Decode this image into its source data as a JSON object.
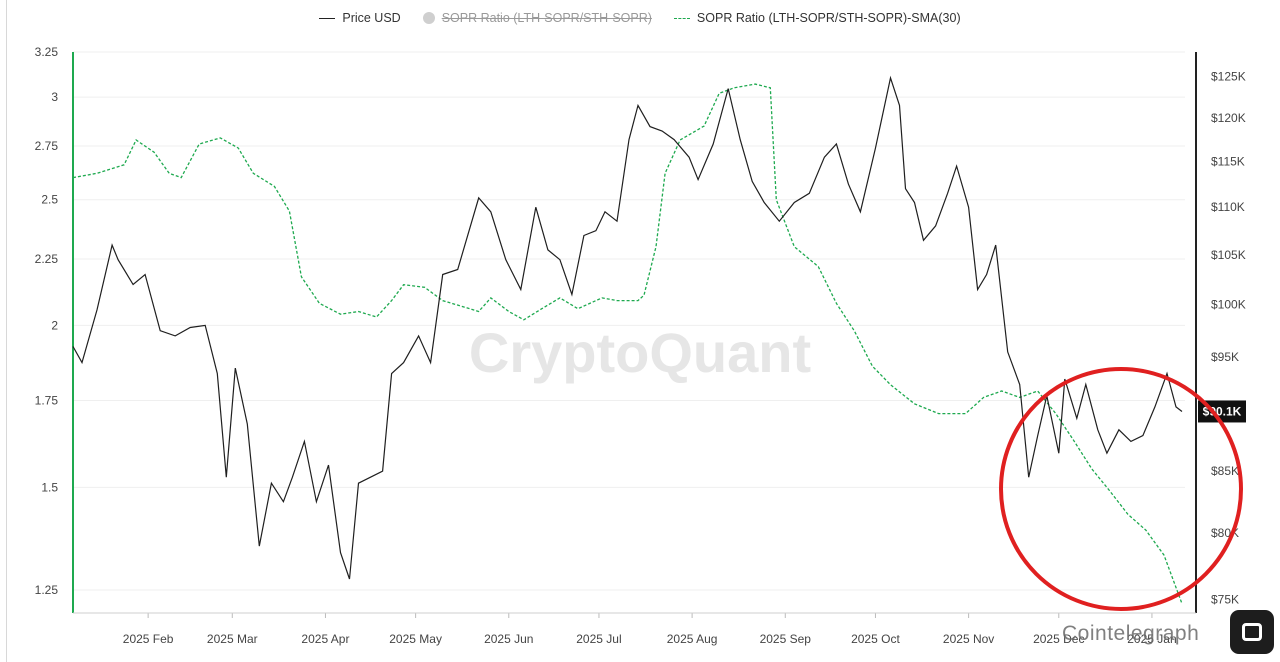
{
  "legend": {
    "items": [
      {
        "label": "Price USD",
        "active": true
      },
      {
        "label": "SOPR Ratio (LTH-SOPR/STH-SOPR)",
        "active": false
      },
      {
        "label": "SOPR Ratio (LTH-SOPR/STH-SOPR)-SMA(30)",
        "active": true
      }
    ]
  },
  "watermark": "CryptoQuant",
  "credit": "Cointelegraph",
  "colors": {
    "price": "#1f1f1f",
    "sopr_sma": "#1ea94f",
    "annotation_circle": "#e02020",
    "left_axis_line": "#1ea94f",
    "price_tag_bg": "#111111"
  },
  "chart_data": {
    "type": "line",
    "x_tick_labels": [
      "2025 Feb",
      "2025 Mar",
      "2025 Apr",
      "2025 May",
      "2025 Jun",
      "2025 Jul",
      "2025 Aug",
      "2025 Sep",
      "2025 Oct",
      "2025 Nov",
      "2025 Dec",
      "2025 Jan"
    ],
    "x_range": [
      "2025-01-07",
      "2026-01-12"
    ],
    "left_axis": {
      "ticks": [
        1.25,
        1.5,
        1.75,
        2,
        2.25,
        2.5,
        2.75,
        3,
        3.25
      ],
      "tick_labels": [
        "1.25",
        "1.5",
        "1.75",
        "2",
        "2.25",
        "2.5",
        "2.75",
        "3",
        "3.25"
      ],
      "range": [
        1.2,
        3.25
      ],
      "scale": "log"
    },
    "right_axis": {
      "ticks": [
        75000,
        80000,
        85000,
        90000,
        95000,
        100000,
        105000,
        110000,
        115000,
        120000,
        125000
      ],
      "tick_labels": [
        "$75K",
        "$80K",
        "$85K",
        "$90K",
        "$95K",
        "$100K",
        "$105K",
        "$110K",
        "$115K",
        "$120K",
        "$125K"
      ],
      "range": [
        74000,
        128000
      ],
      "scale": "log"
    },
    "current_price_label": "$90.1K",
    "series": [
      {
        "name": "Price USD",
        "axis": "right",
        "style": "solid",
        "points": [
          [
            "2025-01-07",
            96000
          ],
          [
            "2025-01-10",
            94500
          ],
          [
            "2025-01-15",
            99500
          ],
          [
            "2025-01-20",
            106000
          ],
          [
            "2025-01-22",
            104500
          ],
          [
            "2025-01-27",
            102000
          ],
          [
            "2025-01-31",
            103000
          ],
          [
            "2025-02-05",
            97500
          ],
          [
            "2025-02-10",
            97000
          ],
          [
            "2025-02-15",
            97800
          ],
          [
            "2025-02-20",
            98000
          ],
          [
            "2025-02-24",
            93500
          ],
          [
            "2025-02-27",
            84500
          ],
          [
            "2025-03-02",
            94000
          ],
          [
            "2025-03-06",
            89000
          ],
          [
            "2025-03-10",
            79000
          ],
          [
            "2025-03-14",
            84000
          ],
          [
            "2025-03-18",
            82500
          ],
          [
            "2025-03-21",
            84500
          ],
          [
            "2025-03-25",
            87500
          ],
          [
            "2025-03-29",
            82500
          ],
          [
            "2025-04-02",
            85500
          ],
          [
            "2025-04-06",
            78500
          ],
          [
            "2025-04-09",
            76500
          ],
          [
            "2025-04-12",
            84000
          ],
          [
            "2025-04-16",
            84500
          ],
          [
            "2025-04-20",
            85000
          ],
          [
            "2025-04-23",
            93500
          ],
          [
            "2025-04-27",
            94500
          ],
          [
            "2025-05-02",
            97000
          ],
          [
            "2025-05-06",
            94500
          ],
          [
            "2025-05-10",
            103000
          ],
          [
            "2025-05-15",
            103500
          ],
          [
            "2025-05-22",
            111000
          ],
          [
            "2025-05-26",
            109500
          ],
          [
            "2025-05-31",
            104500
          ],
          [
            "2025-06-05",
            101500
          ],
          [
            "2025-06-10",
            110000
          ],
          [
            "2025-06-14",
            105500
          ],
          [
            "2025-06-18",
            104500
          ],
          [
            "2025-06-22",
            101000
          ],
          [
            "2025-06-26",
            107000
          ],
          [
            "2025-06-30",
            107500
          ],
          [
            "2025-07-03",
            109500
          ],
          [
            "2025-07-07",
            108500
          ],
          [
            "2025-07-11",
            117500
          ],
          [
            "2025-07-14",
            121500
          ],
          [
            "2025-07-18",
            119000
          ],
          [
            "2025-07-22",
            118500
          ],
          [
            "2025-07-26",
            117500
          ],
          [
            "2025-07-31",
            115500
          ],
          [
            "2025-08-03",
            113000
          ],
          [
            "2025-08-08",
            117000
          ],
          [
            "2025-08-13",
            123500
          ],
          [
            "2025-08-17",
            117500
          ],
          [
            "2025-08-21",
            112800
          ],
          [
            "2025-08-25",
            110500
          ],
          [
            "2025-08-30",
            108500
          ],
          [
            "2025-09-04",
            110500
          ],
          [
            "2025-09-09",
            111500
          ],
          [
            "2025-09-14",
            115500
          ],
          [
            "2025-09-18",
            117000
          ],
          [
            "2025-09-22",
            112500
          ],
          [
            "2025-09-26",
            109500
          ],
          [
            "2025-10-01",
            116500
          ],
          [
            "2025-10-06",
            124800
          ],
          [
            "2025-10-09",
            121500
          ],
          [
            "2025-10-11",
            112000
          ],
          [
            "2025-10-14",
            110500
          ],
          [
            "2025-10-17",
            106500
          ],
          [
            "2025-10-21",
            108000
          ],
          [
            "2025-10-25",
            111500
          ],
          [
            "2025-10-28",
            114500
          ],
          [
            "2025-11-01",
            110000
          ],
          [
            "2025-11-04",
            101500
          ],
          [
            "2025-11-07",
            103000
          ],
          [
            "2025-11-10",
            106000
          ],
          [
            "2025-11-14",
            95500
          ],
          [
            "2025-11-18",
            92500
          ],
          [
            "2025-11-21",
            84500
          ],
          [
            "2025-11-24",
            88000
          ],
          [
            "2025-11-27",
            91500
          ],
          [
            "2025-12-01",
            86500
          ],
          [
            "2025-12-03",
            93000
          ],
          [
            "2025-12-07",
            89500
          ],
          [
            "2025-12-10",
            92500
          ],
          [
            "2025-12-14",
            88500
          ],
          [
            "2025-12-17",
            86500
          ],
          [
            "2025-12-21",
            88500
          ],
          [
            "2025-12-25",
            87500
          ],
          [
            "2025-12-29",
            88000
          ],
          [
            "2026-01-02",
            90500
          ],
          [
            "2026-01-06",
            93500
          ],
          [
            "2026-01-09",
            90500
          ],
          [
            "2026-01-11",
            90100
          ]
        ]
      },
      {
        "name": "SOPR Ratio (LTH-SOPR/STH-SOPR)-SMA(30)",
        "axis": "left",
        "style": "dashed",
        "points": [
          [
            "2025-01-07",
            2.6
          ],
          [
            "2025-01-15",
            2.62
          ],
          [
            "2025-01-24",
            2.66
          ],
          [
            "2025-01-28",
            2.78
          ],
          [
            "2025-02-03",
            2.72
          ],
          [
            "2025-02-08",
            2.62
          ],
          [
            "2025-02-12",
            2.6
          ],
          [
            "2025-02-18",
            2.76
          ],
          [
            "2025-02-25",
            2.79
          ],
          [
            "2025-03-03",
            2.74
          ],
          [
            "2025-03-08",
            2.62
          ],
          [
            "2025-03-15",
            2.56
          ],
          [
            "2025-03-20",
            2.45
          ],
          [
            "2025-03-24",
            2.18
          ],
          [
            "2025-03-30",
            2.08
          ],
          [
            "2025-04-06",
            2.04
          ],
          [
            "2025-04-12",
            2.05
          ],
          [
            "2025-04-18",
            2.03
          ],
          [
            "2025-04-23",
            2.09
          ],
          [
            "2025-04-27",
            2.15
          ],
          [
            "2025-05-04",
            2.14
          ],
          [
            "2025-05-10",
            2.09
          ],
          [
            "2025-05-16",
            2.07
          ],
          [
            "2025-05-22",
            2.05
          ],
          [
            "2025-05-26",
            2.1
          ],
          [
            "2025-06-01",
            2.05
          ],
          [
            "2025-06-06",
            2.02
          ],
          [
            "2025-06-12",
            2.06
          ],
          [
            "2025-06-18",
            2.1
          ],
          [
            "2025-06-24",
            2.06
          ],
          [
            "2025-07-02",
            2.1
          ],
          [
            "2025-07-07",
            2.09
          ],
          [
            "2025-07-14",
            2.09
          ],
          [
            "2025-07-16",
            2.11
          ],
          [
            "2025-07-20",
            2.3
          ],
          [
            "2025-07-23",
            2.62
          ],
          [
            "2025-07-28",
            2.78
          ],
          [
            "2025-08-05",
            2.85
          ],
          [
            "2025-08-10",
            3.02
          ],
          [
            "2025-08-15",
            3.05
          ],
          [
            "2025-08-22",
            3.07
          ],
          [
            "2025-08-27",
            3.05
          ],
          [
            "2025-08-29",
            2.5
          ],
          [
            "2025-09-04",
            2.3
          ],
          [
            "2025-09-12",
            2.22
          ],
          [
            "2025-09-18",
            2.08
          ],
          [
            "2025-09-24",
            1.98
          ],
          [
            "2025-09-30",
            1.86
          ],
          [
            "2025-10-06",
            1.8
          ],
          [
            "2025-10-14",
            1.74
          ],
          [
            "2025-10-22",
            1.71
          ],
          [
            "2025-10-31",
            1.71
          ],
          [
            "2025-11-06",
            1.76
          ],
          [
            "2025-11-12",
            1.78
          ],
          [
            "2025-11-18",
            1.76
          ],
          [
            "2025-11-24",
            1.78
          ],
          [
            "2025-11-30",
            1.71
          ],
          [
            "2025-12-06",
            1.63
          ],
          [
            "2025-12-12",
            1.55
          ],
          [
            "2025-12-18",
            1.49
          ],
          [
            "2025-12-24",
            1.43
          ],
          [
            "2025-12-30",
            1.39
          ],
          [
            "2026-01-05",
            1.33
          ],
          [
            "2026-01-11",
            1.22
          ]
        ]
      }
    ],
    "annotations": [
      {
        "type": "circle",
        "color": "#e02020",
        "around": "2025-11-20 to 2026-01-12"
      }
    ],
    "grid": true
  }
}
